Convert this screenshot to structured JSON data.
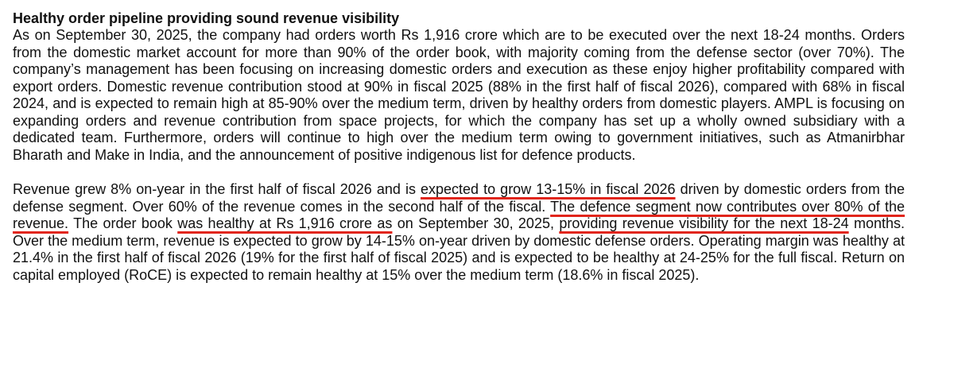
{
  "document": {
    "heading": "Healthy order pipeline providing sound revenue visibility",
    "paragraph1": "As on September 30, 2025, the company had orders worth Rs 1,916 crore which are to be executed over the next 18-24 months. Orders from the domestic market account for more than 90% of the order book, with majority coming from the defense sector (over 70%). The company’s management has been focusing on increasing domestic orders and execution as these enjoy higher profitability compared with export orders. Domestic revenue contribution stood at 90% in fiscal 2025 (88% in the first half of fiscal 2026), compared with 68% in fiscal 2024, and is expected to remain high at 85-90% over the medium term, driven by healthy orders from domestic players. AMPL is focusing on expanding orders and revenue contribution from space projects, for which the company has set up a wholly owned subsidiary with a dedicated team. Furthermore, orders will continue to high over the medium term owing to government initiatives, such as Atmanirbhar Bharath and Make in India, and the announcement of positive indigenous list for defence products.",
    "paragraph2": {
      "s1": "Revenue grew 8% on-year in the first half of fiscal 2026 and is ",
      "h1": "expected to grow 13-15% in fiscal 2026",
      "s2": " driven by domestic orders from the defense segment. Over 60% of the revenue comes in the second half of the fiscal. ",
      "h2": "The defence segment now contributes over 80% of the revenue.",
      "s3": " The order book ",
      "h3": "was healthy at Rs 1,916 crore as",
      "s4": " on September 30, 2025, ",
      "h4": "providing revenue visibility for the next 18-24",
      "s5": " months. Over the medium term, revenue is expected to grow by 14-15% on-year driven by domestic defense orders. Operating margin was healthy at 21.4% in the first half of fiscal 2026 (19% for the first half of fiscal 2025) and is expected to be healthy at 24-25% for the full fiscal. Return on capital employed (RoCE) is expected to remain healthy at 15% over the medium term (18.6% in fiscal 2025)."
    }
  },
  "colors": {
    "text": "#111111",
    "highlight_underline": "#e1251b",
    "background": "#ffffff"
  }
}
